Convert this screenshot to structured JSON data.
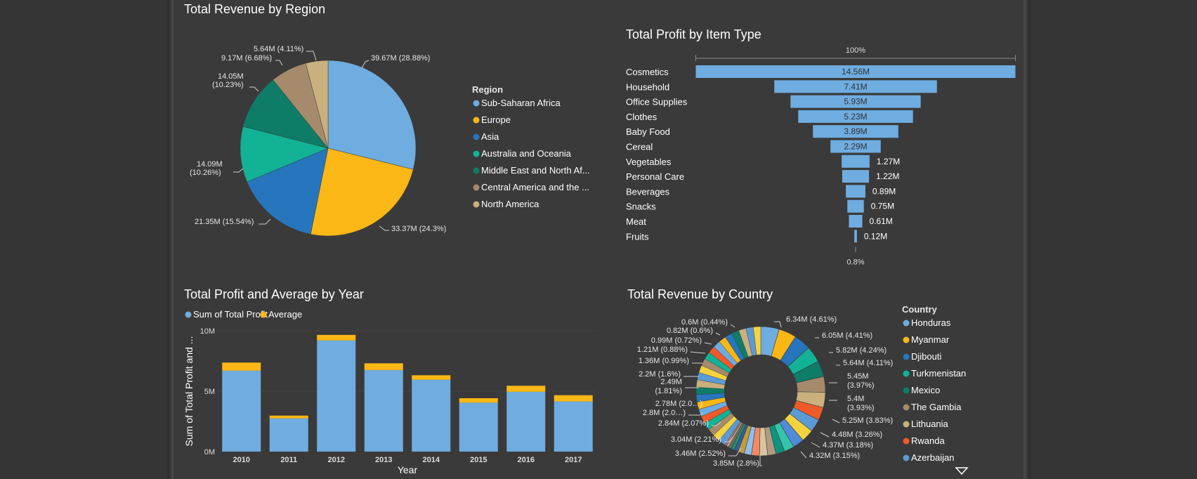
{
  "chart_data": [
    {
      "type": "pie",
      "title": "Total Revenue by Region",
      "legend_title": "Region",
      "legend_position": "right",
      "slices": [
        {
          "name": "Sub-Saharan Africa",
          "value": 39.67,
          "label": "39.67M (28.88%)",
          "color": "#6FACE0"
        },
        {
          "name": "Europe",
          "value": 33.37,
          "label": "33.37M (24.3%)",
          "color": "#FBB715"
        },
        {
          "name": "Asia",
          "value": 21.35,
          "label": "21.35M (15.54%)",
          "color": "#2775BD"
        },
        {
          "name": "Australia and Oceania",
          "value": 14.09,
          "label": "14.09M (10.26%)",
          "color": "#12B296"
        },
        {
          "name": "Middle East and North Af...",
          "value": 14.05,
          "label": "14.05M (10.23%)",
          "color": "#0E7C66"
        },
        {
          "name": "Central America and the ...",
          "value": 9.17,
          "label": "9.17M (6.68%)",
          "color": "#A58B6C"
        },
        {
          "name": "North America",
          "value": 5.64,
          "label": "5.64M (4.11%)",
          "color": "#C9B07D"
        }
      ]
    },
    {
      "type": "bar",
      "orientation": "funnel",
      "title": "Total Profit by Item Type",
      "top_label": "100%",
      "bottom_label": "0.8%",
      "color": "#6FACE0",
      "categories": [
        "Cosmetics",
        "Household",
        "Office Supplies",
        "Clothes",
        "Baby Food",
        "Cereal",
        "Vegetables",
        "Personal Care",
        "Beverages",
        "Snacks",
        "Meat",
        "Fruits"
      ],
      "values": [
        14.56,
        7.41,
        5.93,
        5.23,
        3.89,
        2.29,
        1.27,
        1.22,
        0.89,
        0.75,
        0.61,
        0.12
      ],
      "value_labels": [
        "14.56M",
        "7.41M",
        "5.93M",
        "5.23M",
        "3.89M",
        "2.29M",
        "1.27M",
        "1.22M",
        "0.89M",
        "0.75M",
        "0.61M",
        "0.12M"
      ]
    },
    {
      "type": "bar",
      "stacked": true,
      "title": "Total Profit and Average by Year",
      "xlabel": "Year",
      "ylabel": "Sum of Total Profit and ...",
      "ylim": [
        0,
        10
      ],
      "yticks": [
        "0M",
        "5M",
        "10M"
      ],
      "grid": true,
      "legend_position": "top-left",
      "categories": [
        "2010",
        "2011",
        "2012",
        "2013",
        "2014",
        "2015",
        "2016",
        "2017"
      ],
      "series": [
        {
          "name": "Sum of Total Profit",
          "color": "#6FACE0",
          "values": [
            6.7,
            2.75,
            9.2,
            6.75,
            5.95,
            4.05,
            4.95,
            4.15
          ]
        },
        {
          "name": "Average",
          "color": "#FBB715",
          "values": [
            0.67,
            0.23,
            0.46,
            0.56,
            0.37,
            0.37,
            0.5,
            0.52
          ]
        }
      ]
    },
    {
      "type": "pie",
      "donut": true,
      "title": "Total Revenue by Country",
      "legend_title": "Country",
      "legend_position": "right",
      "legend_items": [
        {
          "name": "Honduras",
          "color": "#6FACE0"
        },
        {
          "name": "Myanmar",
          "color": "#FBB715"
        },
        {
          "name": "Djibouti",
          "color": "#2775BD"
        },
        {
          "name": "Turkmenistan",
          "color": "#12B296"
        },
        {
          "name": "Mexico",
          "color": "#0E7C66"
        },
        {
          "name": "The Gambia",
          "color": "#A58B6C"
        },
        {
          "name": "Lithuania",
          "color": "#C9B07D"
        },
        {
          "name": "Rwanda",
          "color": "#F05A28"
        },
        {
          "name": "Azerbaijan",
          "color": "#5B9BD5"
        }
      ],
      "labels": [
        "6.34M (4.61%)",
        "6.05M (4.41%)",
        "5.82M (4.24%)",
        "5.64M (4.11%)",
        "5.45M (3.97%)",
        "5.4M (3.93%)",
        "5.25M (3.83%)",
        "4.48M (3.26%)",
        "4.37M (3.18%)",
        "4.32M (3.15%)",
        "3.85M (2.8%)",
        "3.46M (2.52%)",
        "3.04M (2.21%)",
        "2.84M (2.07%)",
        "2.8M (2.0…)",
        "2.78M (2.0…)",
        "2.49M (1.81%)",
        "2.2M (1.6%)",
        "1.36M (0.99%)",
        "1.21M (0.88%)",
        "0.99M (0.72%)",
        "0.82M (0.6%)",
        "0.6M (0.44%)"
      ],
      "values": [
        6.34,
        6.05,
        5.82,
        5.64,
        5.45,
        5.4,
        5.25,
        4.48,
        4.37,
        4.32,
        3.85,
        3.46,
        3.04,
        2.84,
        2.8,
        2.78,
        2.49,
        2.2,
        1.36,
        1.21,
        0.99,
        0.82,
        0.6
      ],
      "colors": [
        "#6FACE0",
        "#FBB715",
        "#2775BD",
        "#12B296",
        "#0E7C66",
        "#A58B6C",
        "#C9B07D",
        "#F05A28",
        "#5B9BD5",
        "#F5D33F",
        "#4F8BD9",
        "#36C4A8",
        "#0E9480",
        "#B39A80",
        "#D8C49E",
        "#F28A62",
        "#8FBFEA",
        "#C49A3A",
        "#2F5F9E",
        "#1F8F75",
        "#7A6A55",
        "#A4A4A4",
        "#D97A3D"
      ]
    }
  ]
}
